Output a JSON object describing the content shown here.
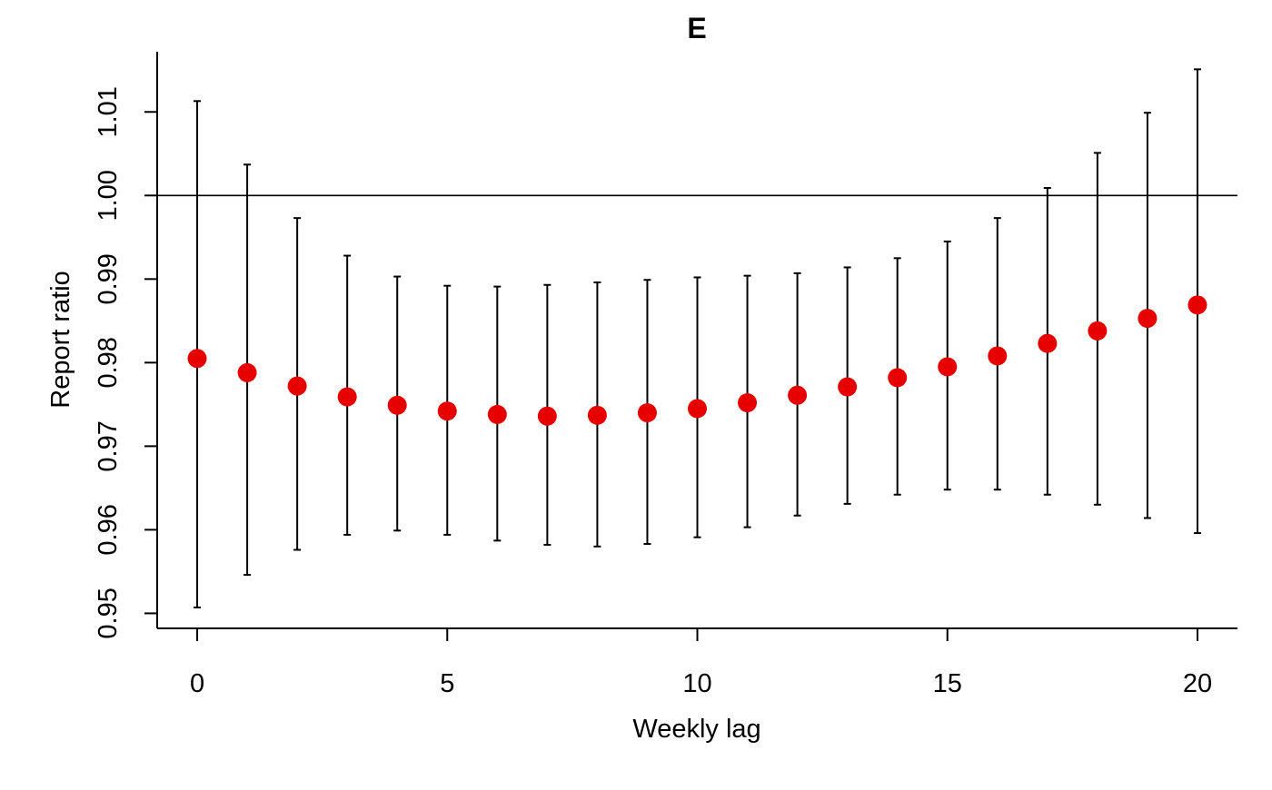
{
  "chart_data": {
    "type": "scatter",
    "title": "E",
    "xlabel": "Weekly lag",
    "ylabel": "Report ratio",
    "xlim": [
      -0.8,
      20.8
    ],
    "ylim": [
      0.9482,
      1.0172
    ],
    "xticks": [
      0,
      5,
      10,
      15,
      20
    ],
    "xtick_labels": [
      "0",
      "5",
      "10",
      "15",
      "20"
    ],
    "yticks": [
      0.95,
      0.96,
      0.97,
      0.98,
      0.99,
      1.0,
      1.01
    ],
    "ytick_labels": [
      "0.95",
      "0.96",
      "0.97",
      "0.98",
      "0.99",
      "1.00",
      "1.01"
    ],
    "reference_line": 1.0,
    "grid": false,
    "legend": "none",
    "series": [
      {
        "x": [
          0,
          1,
          2,
          3,
          4,
          5,
          6,
          7,
          8,
          9,
          10,
          11,
          12,
          13,
          14,
          15,
          16,
          17,
          18,
          19,
          20
        ],
        "values": [
          0.9805,
          0.9788,
          0.9772,
          0.9759,
          0.9749,
          0.9742,
          0.9738,
          0.9736,
          0.9737,
          0.974,
          0.9745,
          0.9752,
          0.9761,
          0.9771,
          0.9782,
          0.9795,
          0.9808,
          0.9823,
          0.9838,
          0.9853,
          0.9869
        ],
        "lower": [
          0.9507,
          0.9546,
          0.9576,
          0.9594,
          0.9599,
          0.9594,
          0.9587,
          0.9582,
          0.958,
          0.9583,
          0.9591,
          0.9603,
          0.9617,
          0.9631,
          0.9642,
          0.9648,
          0.9648,
          0.9642,
          0.963,
          0.9614,
          0.9596
        ],
        "upper": [
          1.0113,
          1.0037,
          0.9973,
          0.9928,
          0.9903,
          0.9892,
          0.9891,
          0.9893,
          0.9896,
          0.9899,
          0.9902,
          0.9904,
          0.9907,
          0.9914,
          0.9925,
          0.9945,
          0.9973,
          1.0009,
          1.0051,
          1.0099,
          1.0151
        ]
      }
    ]
  },
  "colors": {
    "point": "#e60000",
    "line": "#000000",
    "background": "#ffffff"
  }
}
